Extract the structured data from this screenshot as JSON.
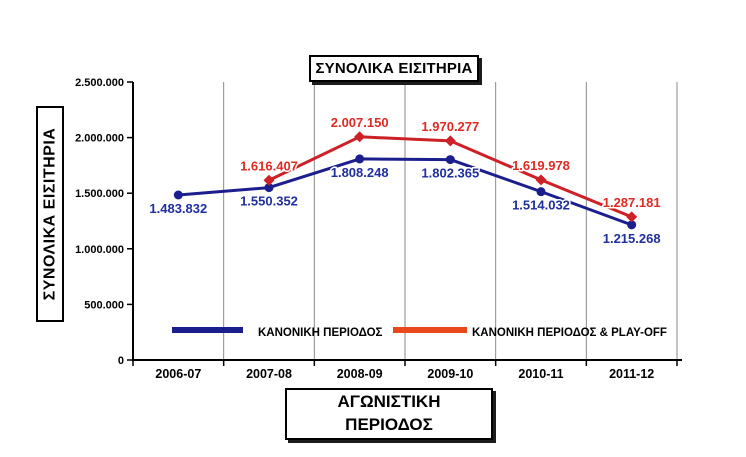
{
  "chart_title": "ΣΥΝΟΛΙΚΑ ΕΙΣΙΤΗΡΙΑ",
  "x_axis_title": "ΑΓΩΝΙΣΤΙΚΗ\nΠΕΡΙΟΔΟΣ",
  "y_axis_title": "ΣΥΝΟΛΙΚΑ ΕΙΣΙΤΗΡΙΑ",
  "colors": {
    "axis": "#000000",
    "gridline": "#8a8a8a",
    "background": "#ffffff",
    "blue_series": "#1b1f8e",
    "red_series": "#ce2127",
    "red_legend_swatch": "#e8481c",
    "tick_label": "#000000"
  },
  "chart_data": {
    "type": "line",
    "title": "ΣΥΝΟΛΙΚΑ ΕΙΣΙΤΗΡΙΑ",
    "xlabel": "ΑΓΩΝΙΣΤΙΚΗ ΠΕΡΙΟΔΟΣ",
    "ylabel": "ΣΥΝΟΛΙΚΑ ΕΙΣΙΤΗΡΙΑ",
    "categories": [
      "2006-07",
      "2007-08",
      "2008-09",
      "2009-10",
      "2010-11",
      "2011-12"
    ],
    "series": [
      {
        "name": "ΚΑΝΟΝΙΚΗ ΠΕΡΙΟΔΟΣ",
        "color": "#1b1f8e",
        "label_color": "#1f2f9e",
        "marker": "circle",
        "label_position": "below",
        "values": [
          1483832,
          1550352,
          1808248,
          1802365,
          1514032,
          1215268
        ],
        "labels": [
          "1.483.832",
          "1.550.352",
          "1.808.248",
          "1.802.365",
          "1.514.032",
          "1.215.268"
        ]
      },
      {
        "name": "ΚΑΝΟΝΙΚΗ ΠΕΡΙΟΔΟΣ & PLAY-OFF",
        "color": "#ce2127",
        "legend_color": "#e8481c",
        "label_color": "#e02a24",
        "marker": "diamond",
        "label_position": "above",
        "values": [
          null,
          1616407,
          2007150,
          1970277,
          1619978,
          1287181
        ],
        "labels": [
          null,
          "1.616.407",
          "2.007.150",
          "1.970.277",
          "1.619.978",
          "1.287.181"
        ]
      }
    ],
    "y_ticks": {
      "values": [
        0,
        500000,
        1000000,
        1500000,
        2000000,
        2500000
      ],
      "labels": [
        "0",
        "500.000",
        "1.000.000",
        "1.500.000",
        "2.000.000",
        "2.500.000"
      ]
    },
    "ylim": [
      0,
      2500000
    ],
    "grid": "vertical-only",
    "legend_position": "inside-bottom"
  }
}
